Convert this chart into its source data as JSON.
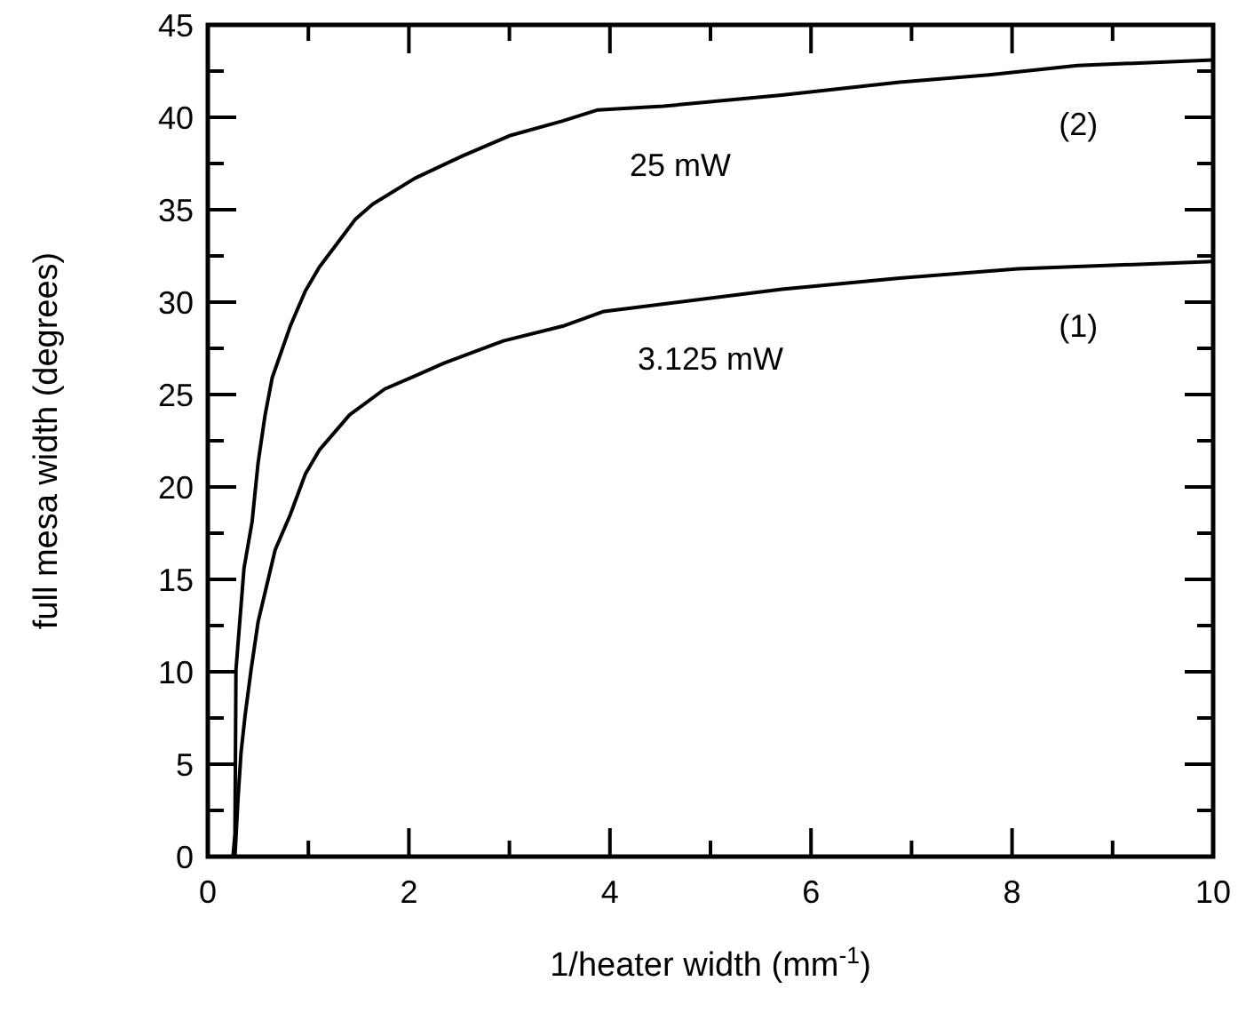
{
  "chart_data": {
    "type": "line",
    "xlabel": "1/heater width (mm$^{-1}$)",
    "ylabel": "full mesa width (degrees)",
    "xlim": [
      0,
      10
    ],
    "ylim": [
      0,
      45
    ],
    "xticks": [
      0,
      {
        "value": 1,
        "label": null
      },
      2,
      {
        "value": 3,
        "label": null
      },
      4,
      {
        "value": 5,
        "label": null
      },
      6,
      {
        "value": 7,
        "label": null
      },
      8,
      {
        "value": 9,
        "label": null
      },
      10
    ],
    "yticks": [
      0,
      {
        "value": 2.5,
        "label": null
      },
      5,
      {
        "value": 7.5,
        "label": null
      },
      10,
      {
        "value": 12.5,
        "label": null
      },
      15,
      {
        "value": 17.5,
        "label": null
      },
      20,
      {
        "value": 22.5,
        "label": null
      },
      25,
      {
        "value": 27.5,
        "label": null
      },
      30,
      {
        "value": 32.5,
        "label": null
      },
      35,
      {
        "value": 37.5,
        "label": null
      },
      40,
      {
        "value": 42.5,
        "label": null
      },
      45
    ],
    "grid": false,
    "marker": "none",
    "line_style": "solid",
    "series": [
      {
        "name": "25 mW",
        "color": "#000000",
        "x": [
          0.25,
          0.27,
          0.28,
          0.36,
          0.44,
          0.5,
          0.57,
          0.64,
          0.82,
          0.97,
          1.11,
          1.29,
          1.47,
          1.64,
          2.06,
          2.53,
          3.0,
          3.53,
          3.88,
          4.53,
          5.71,
          6.88,
          7.77,
          8.65,
          10
        ],
        "values": [
          0,
          1.2,
          10.1,
          15.6,
          18.1,
          21.3,
          23.9,
          25.9,
          28.7,
          30.6,
          31.9,
          33.2,
          34.5,
          35.3,
          36.7,
          37.9,
          39.0,
          39.8,
          40.4,
          40.6,
          41.2,
          41.9,
          42.3,
          42.8,
          43.1
        ]
      },
      {
        "name": "3.125 mW",
        "color": "#000000",
        "x": [
          0.27,
          0.3,
          0.33,
          0.37,
          0.43,
          0.5,
          0.57,
          0.67,
          0.82,
          0.97,
          1.11,
          1.41,
          1.76,
          2.06,
          2.35,
          2.94,
          3.53,
          3.94,
          5.71,
          6.88,
          8.06,
          10
        ],
        "values": [
          0,
          3.1,
          5.6,
          7.6,
          10.1,
          12.7,
          14.3,
          16.6,
          18.5,
          20.7,
          22.0,
          23.9,
          25.3,
          26.0,
          26.7,
          27.9,
          28.7,
          29.5,
          30.7,
          31.3,
          31.8,
          32.2
        ]
      }
    ],
    "annotations": [
      "(2)",
      "(1)"
    ]
  }
}
